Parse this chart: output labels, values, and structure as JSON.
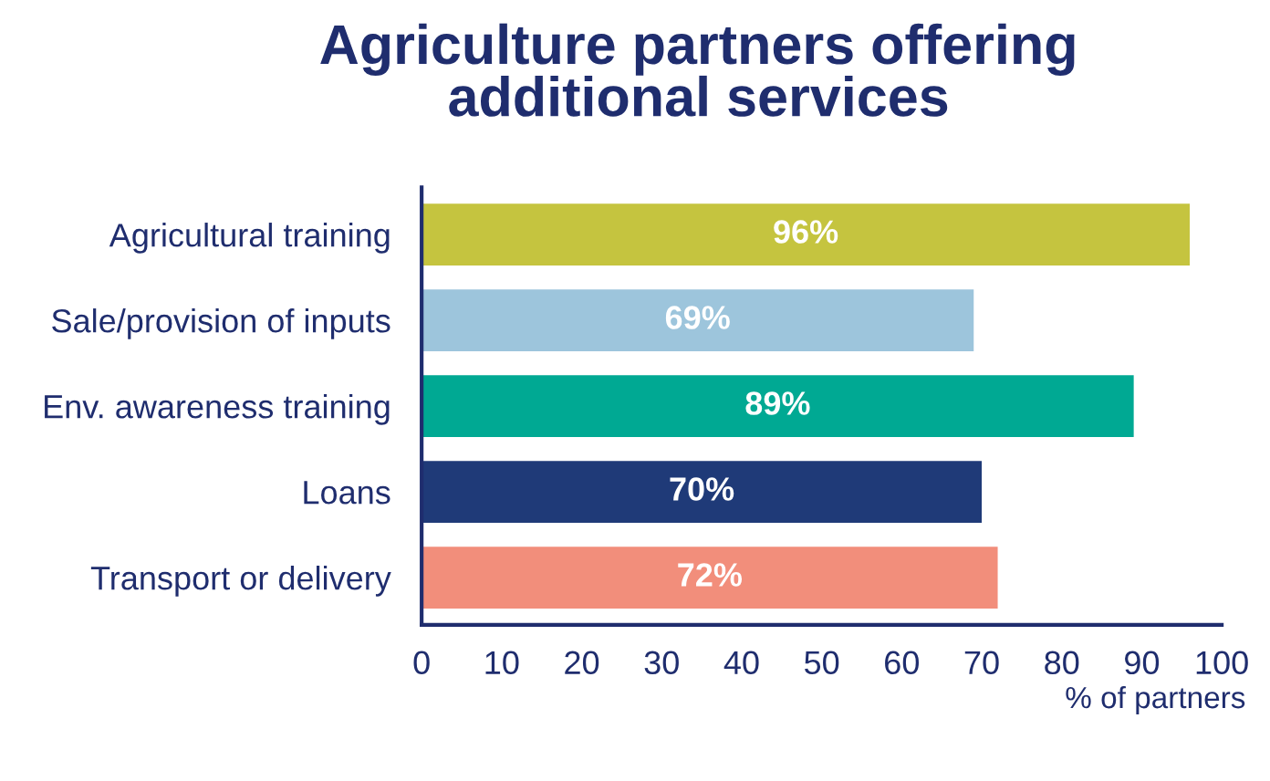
{
  "chart_data": {
    "type": "bar",
    "orientation": "horizontal",
    "title": "Agriculture partners offering\nadditional services",
    "xlabel": "% of partners",
    "categories": [
      "Agricultural training",
      "Sale/provision of inputs",
      "Env. awareness training",
      "Loans",
      "Transport or delivery"
    ],
    "values": [
      96,
      69,
      89,
      70,
      72
    ],
    "value_labels": [
      "96%",
      "69%",
      "89%",
      "70%",
      "72%"
    ],
    "colors": [
      "#c5c43f",
      "#9dc5dc",
      "#00a993",
      "#1f3a78",
      "#f28e7b"
    ],
    "xlim": [
      0,
      100
    ],
    "xticks": [
      0,
      10,
      20,
      30,
      40,
      50,
      60,
      70,
      80,
      90,
      100
    ],
    "grid": false,
    "legend": false
  }
}
